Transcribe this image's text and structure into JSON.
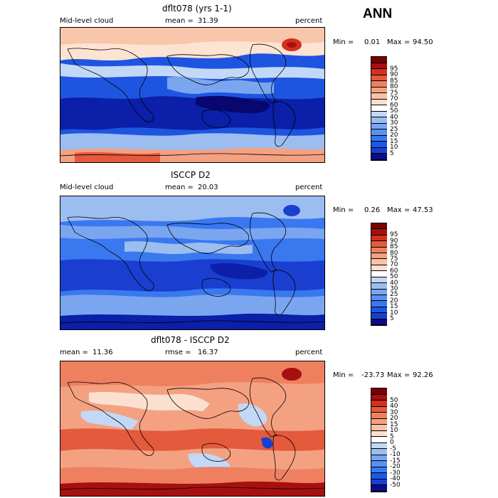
{
  "season": "ANN",
  "colors": {
    "abs": [
      "#0b0b8c",
      "#1a3fd0",
      "#1a58e8",
      "#3a78f0",
      "#5a90f0",
      "#7aa6f0",
      "#9cbdf0",
      "#c2d8f6",
      "#ffffff",
      "#fce0cf",
      "#f8c2a8",
      "#f4a182",
      "#ee8060",
      "#e45a3c",
      "#d4301e",
      "#a81010",
      "#7a0000"
    ],
    "diff": [
      "#0b0b8c",
      "#1a3fd0",
      "#1a58e8",
      "#3a78f0",
      "#5a90f0",
      "#7aa6f0",
      "#9cbdf0",
      "#c2d8f6",
      "#ffffff",
      "#fce0cf",
      "#f8c2a8",
      "#f4a182",
      "#ee8060",
      "#e45a3c",
      "#d4301e",
      "#a81010",
      "#7a0000"
    ],
    "coast": "#000000"
  },
  "panels": [
    {
      "title": "dflt078 (yrs 1-1)",
      "variable": "Mid-level cloud",
      "stat1_label": "mean =",
      "stat1_value": "31.39",
      "stat2_label": "",
      "stat2_value": "",
      "units": "percent",
      "min_label": "Min =",
      "min_value": "0.01",
      "max_label": "Max =",
      "max_value": "94.50"
    },
    {
      "title": "ISCCP D2",
      "variable": "Mid-level cloud",
      "stat1_label": "mean =",
      "stat1_value": "20.03",
      "stat2_label": "",
      "stat2_value": "",
      "units": "percent",
      "min_label": "Min =",
      "min_value": "0.26",
      "max_label": "Max =",
      "max_value": "47.53"
    },
    {
      "title": "dflt078 - ISCCP D2",
      "variable": "",
      "stat1_label": "mean =",
      "stat1_value": "11.36",
      "stat2_label": "rmse =",
      "stat2_value": "16.37",
      "units": "percent",
      "min_label": "Min =",
      "min_value": "-23.73",
      "max_label": "Max =",
      "max_value": "92.26"
    }
  ],
  "chart_data": [
    {
      "type": "heatmap",
      "title": "dflt078 (yrs 1-1)",
      "variable": "Mid-level cloud",
      "units": "percent",
      "mean": 31.39,
      "min": 0.01,
      "max": 94.5,
      "colorbar_levels": [
        5,
        10,
        15,
        20,
        25,
        30,
        40,
        50,
        60,
        70,
        75,
        80,
        85,
        90,
        95
      ],
      "colorbar_labels": [
        "5",
        "10",
        "15",
        "20",
        "25",
        "30",
        "40",
        "50",
        "60",
        "70",
        "75",
        "80",
        "85",
        "90",
        "95"
      ]
    },
    {
      "type": "heatmap",
      "title": "ISCCP D2",
      "variable": "Mid-level cloud",
      "units": "percent",
      "mean": 20.03,
      "min": 0.26,
      "max": 47.53,
      "colorbar_levels": [
        5,
        10,
        15,
        20,
        25,
        30,
        40,
        50,
        60,
        70,
        75,
        80,
        85,
        90,
        95
      ],
      "colorbar_labels": [
        "5",
        "10",
        "15",
        "20",
        "25",
        "30",
        "40",
        "50",
        "60",
        "70",
        "75",
        "80",
        "85",
        "90",
        "95"
      ]
    },
    {
      "type": "heatmap",
      "title": "dflt078 - ISCCP D2",
      "units": "percent",
      "mean": 11.36,
      "rmse": 16.37,
      "min": -23.73,
      "max": 92.26,
      "colorbar_levels": [
        -50,
        -40,
        -30,
        -20,
        -15,
        -10,
        -5,
        0,
        5,
        10,
        15,
        20,
        30,
        40,
        50
      ],
      "colorbar_labels": [
        "-50",
        "-40",
        "-30",
        "-20",
        "-15",
        "-10",
        "-5",
        "0",
        "5",
        "10",
        "15",
        "20",
        "30",
        "40",
        "50"
      ]
    }
  ]
}
